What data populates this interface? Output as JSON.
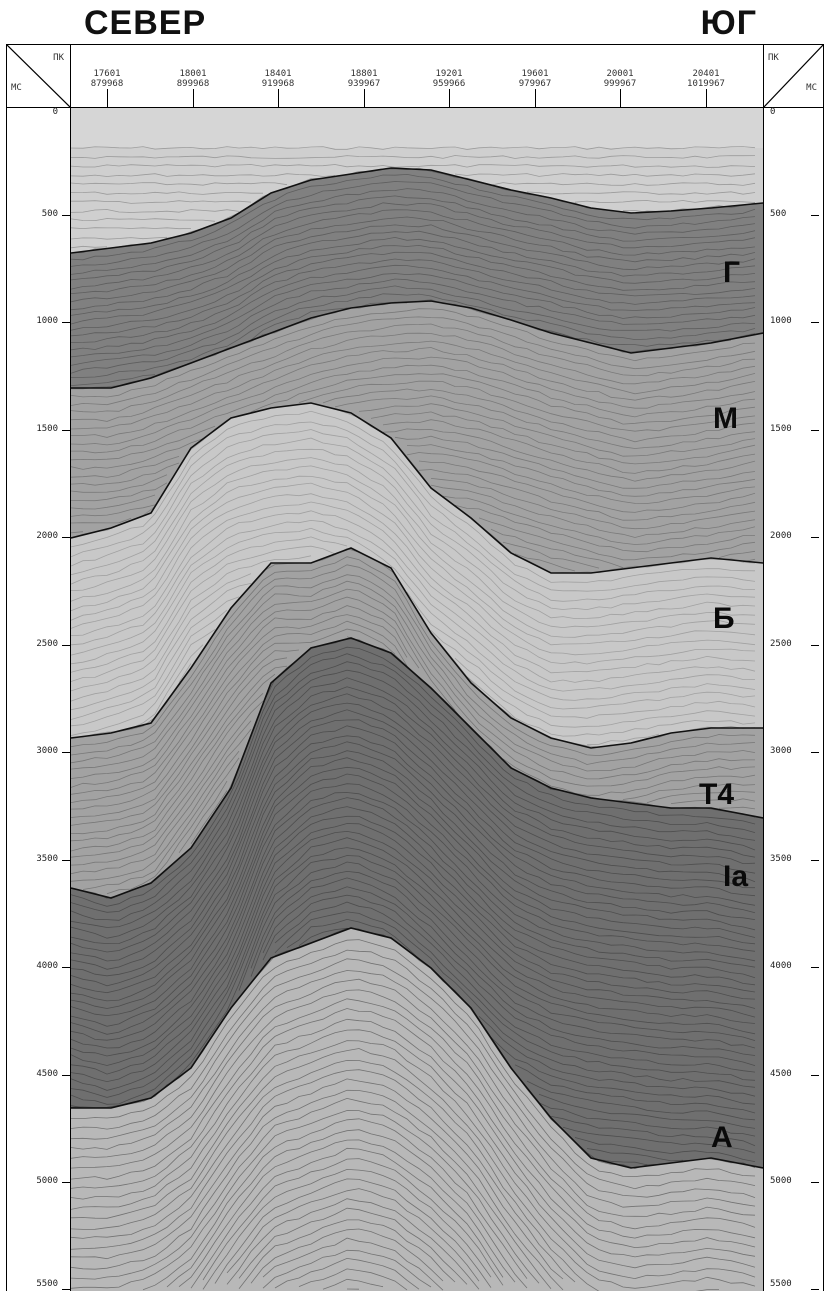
{
  "directions": {
    "north": "СЕВЕР",
    "south": "ЮГ"
  },
  "header": {
    "left_top": "ПК",
    "left_bottom": "МС",
    "right_top": "ПК",
    "right_bottom": "МС",
    "pickets": [
      {
        "pk": "17601",
        "coord": "879968"
      },
      {
        "pk": "18001",
        "coord": "899968"
      },
      {
        "pk": "18401",
        "coord": "919968"
      },
      {
        "pk": "18801",
        "coord": "939967"
      },
      {
        "pk": "19201",
        "coord": "959966"
      },
      {
        "pk": "19601",
        "coord": "979967"
      },
      {
        "pk": "20001",
        "coord": "999967"
      },
      {
        "pk": "20401",
        "coord": "1019967"
      }
    ]
  },
  "time_axis": {
    "unit": "мс",
    "left_ticks": [
      "0",
      "500",
      "1000",
      "1500",
      "2000",
      "2500",
      "3000",
      "3500",
      "4000",
      "4500",
      "5000",
      "5500"
    ],
    "right_ticks": [
      "0",
      "500",
      "1000",
      "1500",
      "2000",
      "2500",
      "3000",
      "3500",
      "4000",
      "4500",
      "5000",
      "5500"
    ],
    "range_ms": [
      0,
      5500
    ]
  },
  "horizons": [
    {
      "name": "Г"
    },
    {
      "name": "М"
    },
    {
      "name": "Б"
    },
    {
      "name": "Т4"
    },
    {
      "name": "Ia"
    },
    {
      "name": "А"
    }
  ],
  "colors": {
    "upper_light": "#cfcfcf",
    "dark_band": "#808080",
    "mid_band": "#a2a2a2",
    "light_core": "#c8c8c8",
    "deep_dark": "#6f6f6f",
    "basement": "#b8b8b8",
    "water": "#d6d6d6"
  }
}
